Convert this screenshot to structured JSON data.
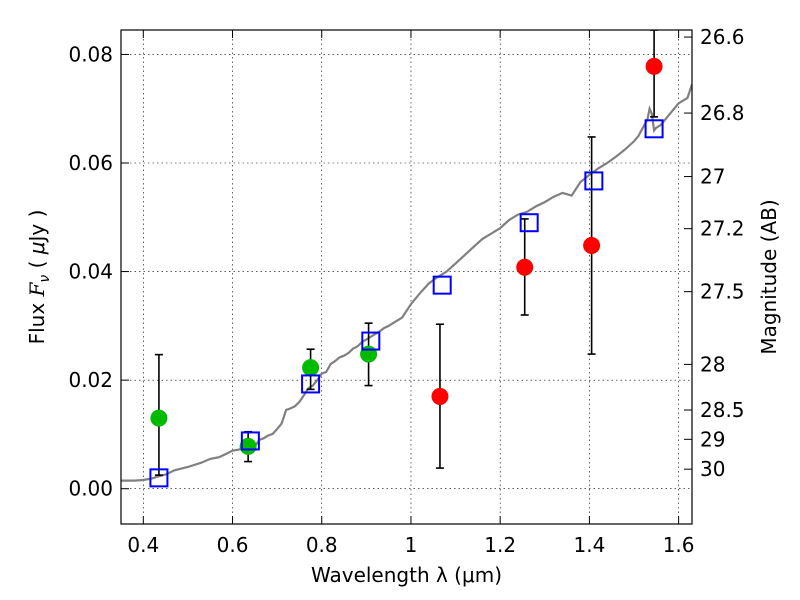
{
  "chart_data": {
    "type": "scatter",
    "title": "",
    "xlabel": "Wavelength  λ (μm)",
    "ylabel": "Flux  F_ν  ( μJy )",
    "ylabel_parts": {
      "prefix": "Flux ",
      "symbol": "F",
      "subscript": "ν",
      "open": " ( ",
      "unit_mu": "μ",
      "unit_rest": "Jy )"
    },
    "y2label": "Magnitude (AB)",
    "xlim": [
      0.35,
      1.63
    ],
    "ylim": [
      -0.0065,
      0.0845
    ],
    "grid": true,
    "xticks": [
      0.4,
      0.6,
      0.8,
      1.0,
      1.2,
      1.4,
      1.6
    ],
    "xtick_labels": [
      "0.4",
      "0.6",
      "0.8",
      "1",
      "1.2",
      "1.4",
      "1.6"
    ],
    "yticks": [
      0.0,
      0.02,
      0.04,
      0.06,
      0.08
    ],
    "ytick_labels": [
      "0.00",
      "0.02",
      "0.04",
      "0.06",
      "0.08"
    ],
    "y2ticks": [
      {
        "label": "26.6",
        "flux": 0.0832
      },
      {
        "label": "26.8",
        "flux": 0.0692
      },
      {
        "label": "27",
        "flux": 0.0575
      },
      {
        "label": "27.2",
        "flux": 0.0479
      },
      {
        "label": "27.5",
        "flux": 0.0363
      },
      {
        "label": "28",
        "flux": 0.0229
      },
      {
        "label": "28.5",
        "flux": 0.0145
      },
      {
        "label": "29",
        "flux": 0.0091
      },
      {
        "label": "30",
        "flux": 0.0036
      }
    ],
    "series": [
      {
        "type": "line",
        "color": "#808080",
        "x": [
          0.35,
          0.38,
          0.4,
          0.42,
          0.43,
          0.45,
          0.47,
          0.5,
          0.53,
          0.55,
          0.57,
          0.59,
          0.6,
          0.62,
          0.64,
          0.65,
          0.66,
          0.67,
          0.68,
          0.69,
          0.7,
          0.71,
          0.72,
          0.73,
          0.74,
          0.75,
          0.76,
          0.77,
          0.78,
          0.79,
          0.8,
          0.81,
          0.82,
          0.83,
          0.84,
          0.85,
          0.86,
          0.87,
          0.88,
          0.89,
          0.9,
          0.91,
          0.92,
          0.93,
          0.94,
          0.95,
          0.96,
          0.98,
          1.0,
          1.02,
          1.04,
          1.06,
          1.08,
          1.1,
          1.12,
          1.14,
          1.16,
          1.18,
          1.2,
          1.22,
          1.24,
          1.26,
          1.28,
          1.3,
          1.32,
          1.34,
          1.36,
          1.38,
          1.4,
          1.42,
          1.44,
          1.46,
          1.48,
          1.5,
          1.51,
          1.52,
          1.53,
          1.535,
          1.54,
          1.545,
          1.55,
          1.56,
          1.58,
          1.6,
          1.62,
          1.63
        ],
        "y": [
          0.0015,
          0.0015,
          0.0016,
          0.0019,
          0.0022,
          0.0026,
          0.0034,
          0.004,
          0.0048,
          0.0055,
          0.0058,
          0.0066,
          0.007,
          0.0073,
          0.0081,
          0.0078,
          0.009,
          0.0093,
          0.0098,
          0.0101,
          0.011,
          0.012,
          0.0145,
          0.0148,
          0.0152,
          0.016,
          0.0172,
          0.0185,
          0.019,
          0.02,
          0.0212,
          0.0215,
          0.023,
          0.0235,
          0.0242,
          0.0245,
          0.025,
          0.0258,
          0.0262,
          0.027,
          0.0275,
          0.028,
          0.0285,
          0.029,
          0.0296,
          0.03,
          0.0305,
          0.0315,
          0.034,
          0.036,
          0.0378,
          0.039,
          0.04,
          0.0415,
          0.043,
          0.0445,
          0.046,
          0.047,
          0.048,
          0.0495,
          0.0505,
          0.051,
          0.052,
          0.0528,
          0.0538,
          0.0545,
          0.054,
          0.0565,
          0.0578,
          0.059,
          0.06,
          0.0612,
          0.0625,
          0.064,
          0.065,
          0.0665,
          0.068,
          0.07,
          0.069,
          0.066,
          0.0665,
          0.067,
          0.069,
          0.071,
          0.072,
          0.0745
        ]
      },
      {
        "type": "scatter",
        "marker": "circle",
        "color": "#00bb00",
        "x": [
          0.435,
          0.635,
          0.775,
          0.905
        ],
        "y": [
          0.013,
          0.0078,
          0.0223,
          0.0248
        ],
        "yerr": [
          [
            0.0025,
            0.0247
          ],
          [
            0.005,
            0.0105
          ],
          [
            0.0183,
            0.0257
          ],
          [
            0.019,
            0.0305
          ]
        ]
      },
      {
        "type": "scatter",
        "marker": "circle",
        "color": "#ff0000",
        "x": [
          1.065,
          1.255,
          1.405,
          1.545
        ],
        "y": [
          0.017,
          0.0408,
          0.0448,
          0.0778
        ],
        "yerr": [
          [
            0.0038,
            0.0303
          ],
          [
            0.032,
            0.0497
          ],
          [
            0.0248,
            0.0648
          ],
          [
            0.0685,
            0.0845
          ]
        ]
      },
      {
        "type": "scatter",
        "marker": "square-open",
        "color": "#0000ff",
        "x": [
          0.435,
          0.64,
          0.775,
          0.91,
          1.07,
          1.265,
          1.41,
          1.545
        ],
        "y": [
          0.002,
          0.0088,
          0.0193,
          0.0272,
          0.0375,
          0.049,
          0.0567,
          0.0663
        ]
      }
    ]
  }
}
